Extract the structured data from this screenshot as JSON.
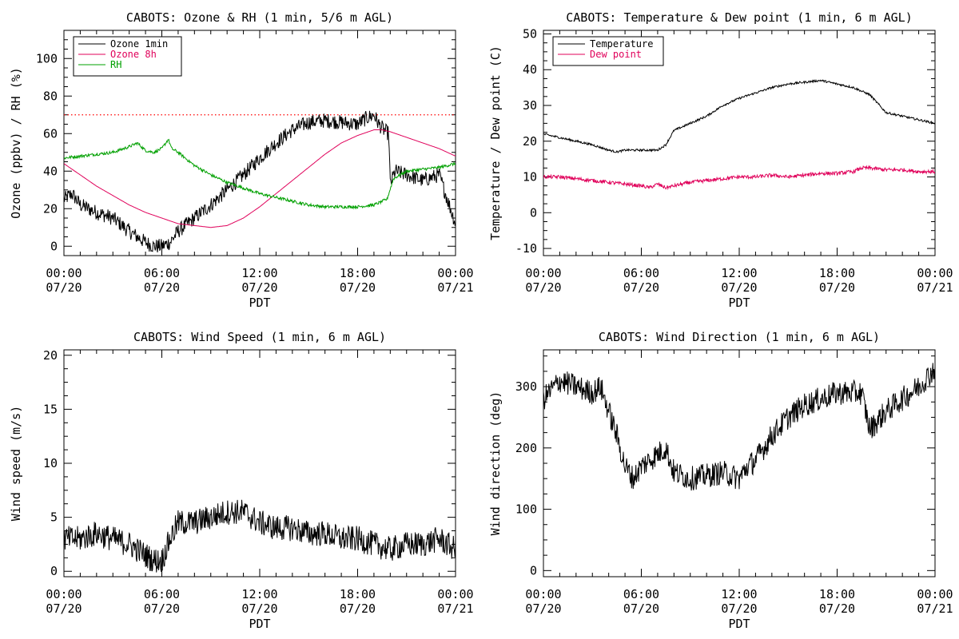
{
  "colors": {
    "black": "#000000",
    "ozone8h": "#e0005a",
    "rh": "#00a000",
    "dewpoint": "#e0005a",
    "refline": "#ff0000"
  },
  "chart_data": [
    {
      "id": "ozone",
      "type": "line",
      "title": "CABOTS: Ozone & RH (1 min, 5/6 m AGL)",
      "xlabel": "PDT",
      "ylabel": "Ozone (ppbv) / RH (%)",
      "ylim": [
        -5,
        115
      ],
      "yticks": [
        0,
        20,
        40,
        60,
        80,
        100
      ],
      "xlim": [
        0,
        24
      ],
      "xticks": [
        {
          "t": 0,
          "time": "00:00",
          "date": "07/20"
        },
        {
          "t": 6,
          "time": "06:00",
          "date": "07/20"
        },
        {
          "t": 12,
          "time": "12:00",
          "date": "07/20"
        },
        {
          "t": 18,
          "time": "18:00",
          "date": "07/20"
        },
        {
          "t": 24,
          "time": "00:00",
          "date": "07/21"
        }
      ],
      "reference_line": {
        "y": 70,
        "style": "dotted"
      },
      "legend_position": "top-left",
      "series": [
        {
          "name": "Ozone 1min",
          "color": "#000000",
          "noise": 4,
          "x": [
            0,
            0.5,
            1,
            2,
            3,
            4,
            5,
            5.5,
            6,
            6.5,
            7,
            8,
            9,
            10,
            11,
            12,
            13,
            14,
            15,
            16,
            17,
            18,
            18.5,
            19,
            19.3,
            19.6,
            19.9,
            20,
            20.3,
            21,
            22,
            23,
            23.5,
            24
          ],
          "y": [
            25,
            28,
            22,
            18,
            15,
            8,
            2,
            0,
            0,
            2,
            8,
            15,
            22,
            30,
            38,
            47,
            55,
            62,
            66,
            67,
            66,
            65,
            68,
            70,
            65,
            62,
            60,
            33,
            40,
            38,
            35,
            38,
            25,
            12
          ]
        },
        {
          "name": "Ozone 8h",
          "color": "#e0005a",
          "noise": 0,
          "x": [
            0,
            1,
            2,
            3,
            4,
            5,
            6,
            7,
            8,
            9,
            10,
            11,
            12,
            13,
            14,
            15,
            16,
            17,
            18,
            19,
            19.5,
            20,
            21,
            22,
            23,
            24
          ],
          "y": [
            44,
            38,
            32,
            27,
            22,
            18,
            15,
            12,
            11,
            10,
            11,
            15,
            21,
            28,
            35,
            42,
            49,
            55,
            59,
            62,
            62,
            61,
            58,
            55,
            52,
            48
          ]
        },
        {
          "name": "RH",
          "color": "#00a000",
          "noise": 0.8,
          "x": [
            0,
            1,
            2,
            3,
            4,
            4.5,
            5,
            5.5,
            6,
            6.4,
            6.6,
            7,
            8,
            9,
            10,
            11,
            12,
            13,
            14,
            15,
            16,
            17,
            18,
            19,
            19.8,
            20.2,
            21,
            22,
            23,
            24
          ],
          "y": [
            47,
            48,
            49,
            50,
            53,
            55,
            51,
            50,
            52,
            57,
            52,
            50,
            43,
            38,
            34,
            31,
            28,
            26,
            24,
            22,
            21,
            21,
            21,
            22,
            25,
            36,
            40,
            41,
            42,
            44
          ]
        }
      ]
    },
    {
      "id": "temp",
      "type": "line",
      "title": "CABOTS: Temperature & Dew point (1 min, 6 m AGL)",
      "xlabel": "PDT",
      "ylabel": "Temperature / Dew point (C)",
      "ylim": [
        -12,
        51
      ],
      "yticks": [
        -10,
        0,
        10,
        20,
        30,
        40,
        50
      ],
      "xlim": [
        0,
        24
      ],
      "xticks": [
        {
          "t": 0,
          "time": "00:00",
          "date": "07/20"
        },
        {
          "t": 6,
          "time": "06:00",
          "date": "07/20"
        },
        {
          "t": 12,
          "time": "12:00",
          "date": "07/20"
        },
        {
          "t": 18,
          "time": "18:00",
          "date": "07/20"
        },
        {
          "t": 24,
          "time": "00:00",
          "date": "07/21"
        }
      ],
      "legend_position": "top-left",
      "series": [
        {
          "name": "Temperature",
          "color": "#000000",
          "noise": 0.3,
          "x": [
            0,
            1,
            2,
            3,
            4,
            4.5,
            5,
            6,
            7,
            7.5,
            8,
            9,
            10,
            11,
            12,
            13,
            14,
            15,
            16,
            17,
            17.5,
            18,
            19,
            20,
            21,
            22,
            23,
            24
          ],
          "y": [
            22,
            21,
            20,
            19,
            17.5,
            17,
            17.5,
            17.5,
            17.5,
            19,
            23,
            25,
            27,
            30,
            32,
            33.5,
            35,
            36,
            36.5,
            37,
            36.5,
            36,
            35,
            33,
            28,
            27,
            26,
            25
          ]
        },
        {
          "name": "Dew point",
          "color": "#e0005a",
          "noise": 0.5,
          "x": [
            0,
            1,
            2,
            3,
            4,
            5,
            6,
            6.5,
            7,
            7.5,
            8,
            9,
            10,
            11,
            12,
            13,
            14,
            15,
            16,
            17,
            18,
            19,
            19.5,
            20,
            21,
            22,
            23,
            24
          ],
          "y": [
            10,
            10,
            9.5,
            9,
            8.5,
            8,
            7.5,
            7,
            8,
            7,
            7.5,
            8.5,
            9,
            9.5,
            10,
            10,
            10.5,
            10,
            10.5,
            11,
            11,
            11.5,
            12.5,
            12.5,
            12,
            12,
            11.5,
            11.5
          ]
        }
      ]
    },
    {
      "id": "wspd",
      "type": "line",
      "title": "CABOTS: Wind Speed (1 min, 6 m AGL)",
      "xlabel": "PDT",
      "ylabel": "Wind speed (m/s)",
      "ylim": [
        -0.5,
        20.5
      ],
      "yticks": [
        0,
        5,
        10,
        15,
        20
      ],
      "xlim": [
        0,
        24
      ],
      "xticks": [
        {
          "t": 0,
          "time": "00:00",
          "date": "07/20"
        },
        {
          "t": 6,
          "time": "06:00",
          "date": "07/20"
        },
        {
          "t": 12,
          "time": "12:00",
          "date": "07/20"
        },
        {
          "t": 18,
          "time": "18:00",
          "date": "07/20"
        },
        {
          "t": 24,
          "time": "00:00",
          "date": "07/21"
        }
      ],
      "series": [
        {
          "name": "",
          "color": "#000000",
          "noise": 1.2,
          "x": [
            0,
            1,
            2,
            3,
            4,
            5,
            5.5,
            6,
            6.5,
            7,
            8,
            9,
            10,
            11,
            12,
            13,
            14,
            15,
            16,
            17,
            18,
            19,
            20,
            21,
            22,
            23,
            24
          ],
          "y": [
            3,
            3,
            3.5,
            3,
            2.5,
            1.5,
            1,
            1,
            3,
            4.5,
            4.5,
            5,
            5.5,
            5.5,
            4.5,
            4,
            4,
            3.5,
            3.5,
            3,
            3,
            2.5,
            2,
            2.5,
            2.5,
            3,
            2
          ]
        }
      ]
    },
    {
      "id": "wdir",
      "type": "line",
      "title": "CABOTS: Wind Direction (1 min, 6 m AGL)",
      "xlabel": "PDT",
      "ylabel": "Wind direction (deg)",
      "ylim": [
        -10,
        360
      ],
      "yticks": [
        0,
        100,
        200,
        300
      ],
      "xlim": [
        0,
        24
      ],
      "xticks": [
        {
          "t": 0,
          "time": "00:00",
          "date": "07/20"
        },
        {
          "t": 6,
          "time": "06:00",
          "date": "07/20"
        },
        {
          "t": 12,
          "time": "12:00",
          "date": "07/20"
        },
        {
          "t": 18,
          "time": "18:00",
          "date": "07/20"
        },
        {
          "t": 24,
          "time": "00:00",
          "date": "07/21"
        }
      ],
      "series": [
        {
          "name": "",
          "color": "#000000",
          "noise": 20,
          "x": [
            0,
            1,
            2,
            3,
            3.5,
            4,
            4.5,
            5,
            5.5,
            6,
            6.5,
            7,
            7.5,
            8,
            9,
            10,
            11,
            12,
            12.5,
            13,
            14,
            15,
            16,
            17,
            18,
            19,
            19.5,
            20,
            21,
            22,
            23,
            24
          ],
          "y": [
            280,
            310,
            300,
            290,
            300,
            260,
            220,
            170,
            150,
            170,
            180,
            190,
            200,
            160,
            150,
            155,
            160,
            150,
            170,
            180,
            220,
            250,
            270,
            280,
            290,
            290,
            290,
            230,
            260,
            280,
            300,
            330
          ]
        }
      ]
    }
  ]
}
